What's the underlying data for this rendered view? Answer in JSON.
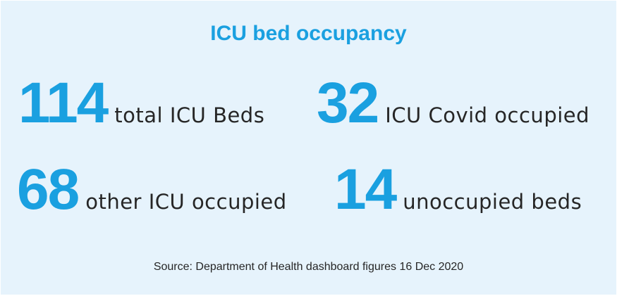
{
  "title": "ICU bed occupancy",
  "stats": [
    {
      "value": "114",
      "label": "total ICU Beds"
    },
    {
      "value": "32",
      "label": "ICU Covid occupied"
    },
    {
      "value": "68",
      "label": "other ICU occupied"
    },
    {
      "value": "14",
      "label": "unoccupied beds"
    }
  ],
  "source": "Source: Department of Health dashboard figures 16 Dec 2020",
  "colors": {
    "accent": "#1aa0e0",
    "background": "#e6f3fc",
    "text": "#262626"
  }
}
